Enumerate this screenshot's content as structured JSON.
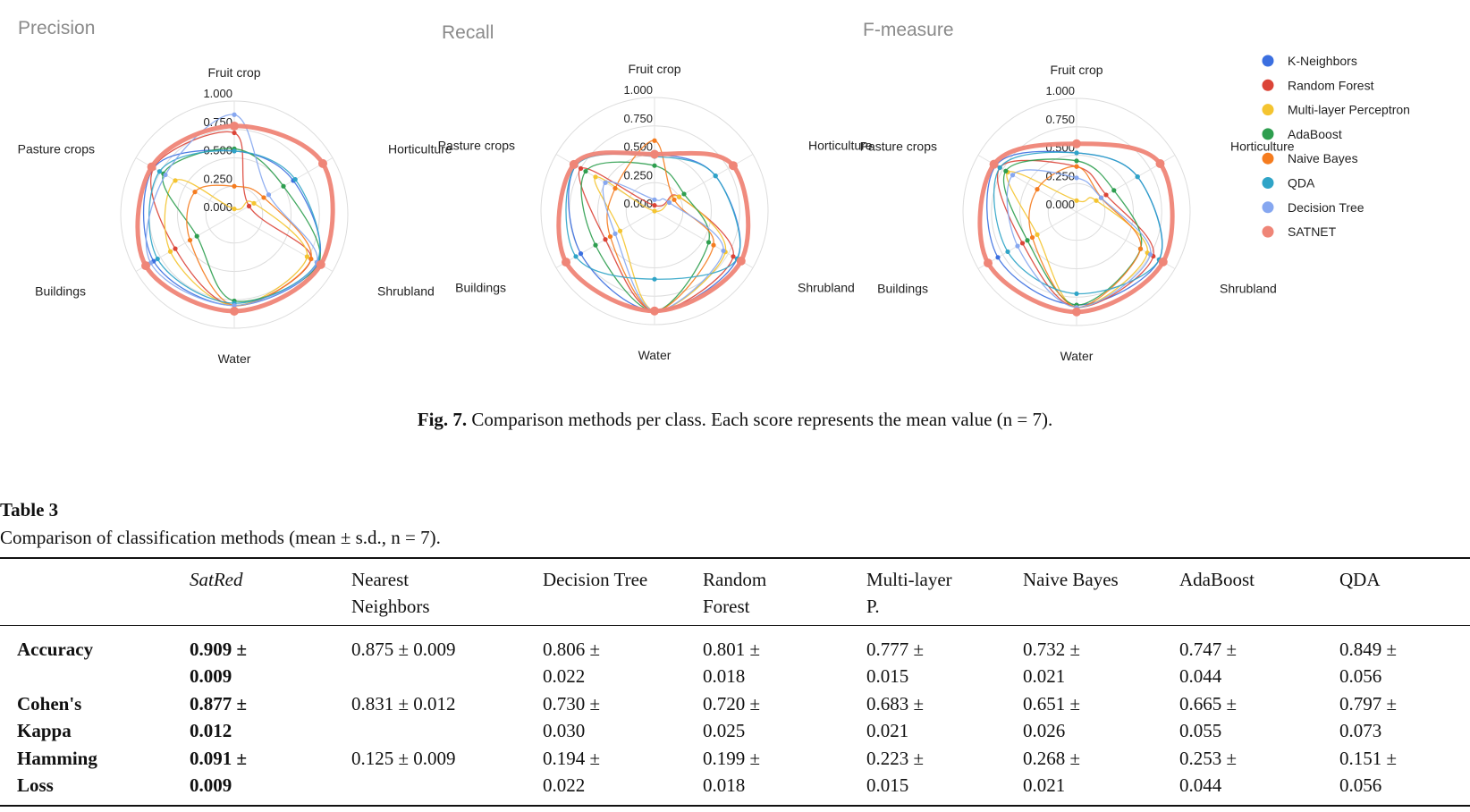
{
  "figure": {
    "classes": [
      "Fruit crop",
      "Horticulture",
      "Shrubland",
      "Water",
      "Buildings",
      "Pasture crops"
    ],
    "ticks": [
      "0.000",
      "0.250",
      "0.500",
      "0.750",
      "1.000"
    ],
    "legend": [
      {
        "name": "K-Neighbors",
        "color": "#3b6fe0"
      },
      {
        "name": "Random Forest",
        "color": "#db4437"
      },
      {
        "name": "Multi-layer Perceptron",
        "color": "#f4c430"
      },
      {
        "name": "AdaBoost",
        "color": "#2e9e4f"
      },
      {
        "name": "Naive Bayes",
        "color": "#f57c1f"
      },
      {
        "name": "QDA",
        "color": "#2fa4c7"
      },
      {
        "name": "Decision Tree",
        "color": "#86a7f0"
      },
      {
        "name": "SATNET",
        "color": "#ef8577"
      }
    ],
    "caption_label": "Fig. 7.",
    "caption_text": " Comparison methods per class. Each score represents the mean value (n = 7)."
  },
  "chart_data": [
    {
      "type": "radar",
      "title": "Precision",
      "axes": [
        "Fruit crop",
        "Horticulture",
        "Shrubland",
        "Water",
        "Buildings",
        "Pasture crops"
      ],
      "ylim": [
        0,
        1
      ],
      "series": [
        {
          "name": "K-Neighbors",
          "values": [
            0.56,
            0.6,
            0.85,
            0.8,
            0.82,
            0.82
          ]
        },
        {
          "name": "Random Forest",
          "values": [
            0.72,
            0.15,
            0.78,
            0.8,
            0.6,
            0.82
          ]
        },
        {
          "name": "Multi-layer Perceptron",
          "values": [
            0.05,
            0.2,
            0.74,
            0.8,
            0.65,
            0.6
          ]
        },
        {
          "name": "AdaBoost",
          "values": [
            0.58,
            0.5,
            0.86,
            0.76,
            0.38,
            0.72
          ]
        },
        {
          "name": "Naive Bayes",
          "values": [
            0.25,
            0.3,
            0.78,
            0.8,
            0.45,
            0.4
          ]
        },
        {
          "name": "QDA",
          "values": [
            0.56,
            0.62,
            0.84,
            0.78,
            0.78,
            0.76
          ]
        },
        {
          "name": "Decision Tree",
          "values": [
            0.88,
            0.35,
            0.84,
            0.8,
            0.85,
            0.7
          ]
        },
        {
          "name": "SATNET",
          "values": [
            0.78,
            0.9,
            0.88,
            0.85,
            0.9,
            0.84
          ]
        }
      ]
    },
    {
      "type": "radar",
      "title": "Recall",
      "axes": [
        "Fruit crop",
        "Horticulture",
        "Shrubland",
        "Water",
        "Buildings",
        "Pasture crops"
      ],
      "ylim": [
        0,
        1
      ],
      "series": [
        {
          "name": "K-Neighbors",
          "values": [
            0.5,
            0.62,
            0.84,
            0.88,
            0.75,
            0.8
          ]
        },
        {
          "name": "Random Forest",
          "values": [
            0.05,
            0.25,
            0.8,
            0.88,
            0.5,
            0.75
          ]
        },
        {
          "name": "Multi-layer Perceptron",
          "values": [
            0.0,
            0.25,
            0.72,
            0.88,
            0.35,
            0.6
          ]
        },
        {
          "name": "AdaBoost",
          "values": [
            0.4,
            0.3,
            0.55,
            0.88,
            0.6,
            0.7
          ]
        },
        {
          "name": "Naive Bayes",
          "values": [
            0.62,
            0.2,
            0.6,
            0.88,
            0.45,
            0.4
          ]
        },
        {
          "name": "QDA",
          "values": [
            0.48,
            0.62,
            0.84,
            0.6,
            0.8,
            0.8
          ]
        },
        {
          "name": "Decision Tree",
          "values": [
            0.1,
            0.15,
            0.7,
            0.88,
            0.4,
            0.5
          ]
        },
        {
          "name": "SATNET",
          "values": [
            0.5,
            0.8,
            0.88,
            0.88,
            0.9,
            0.82
          ]
        }
      ]
    },
    {
      "type": "radar",
      "title": "F-measure",
      "axes": [
        "Fruit crop",
        "Horticulture",
        "Shrubland",
        "Water",
        "Buildings",
        "Pasture crops"
      ],
      "ylim": [
        0,
        1
      ],
      "series": [
        {
          "name": "K-Neighbors",
          "values": [
            0.52,
            0.62,
            0.84,
            0.82,
            0.8,
            0.82
          ]
        },
        {
          "name": "Random Forest",
          "values": [
            0.4,
            0.3,
            0.78,
            0.84,
            0.55,
            0.78
          ]
        },
        {
          "name": "Multi-layer Perceptron",
          "values": [
            0.1,
            0.2,
            0.72,
            0.84,
            0.4,
            0.7
          ]
        },
        {
          "name": "AdaBoost",
          "values": [
            0.45,
            0.38,
            0.65,
            0.82,
            0.5,
            0.72
          ]
        },
        {
          "name": "Naive Bayes",
          "values": [
            0.4,
            0.25,
            0.65,
            0.84,
            0.45,
            0.4
          ]
        },
        {
          "name": "QDA",
          "values": [
            0.52,
            0.62,
            0.84,
            0.72,
            0.7,
            0.78
          ]
        },
        {
          "name": "Decision Tree",
          "values": [
            0.3,
            0.25,
            0.75,
            0.84,
            0.6,
            0.65
          ]
        },
        {
          "name": "SATNET",
          "values": [
            0.6,
            0.85,
            0.88,
            0.88,
            0.9,
            0.84
          ]
        }
      ]
    }
  ],
  "table": {
    "label": "Table 3",
    "caption": "Comparison of classification methods (mean ± s.d., n = 7).",
    "columns": [
      "SatRed",
      "Nearest\nNeighbors",
      "Decision Tree",
      "Random\nForest",
      "Multi-layer\nP.",
      "Naive Bayes",
      "AdaBoost",
      "QDA"
    ],
    "rows": [
      {
        "label": "Accuracy",
        "values": [
          "0.909 ±\n0.009",
          "0.875 ± 0.009",
          "0.806 ±\n0.022",
          "0.801 ±\n0.018",
          "0.777 ±\n0.015",
          "0.732 ±\n0.021",
          "0.747 ±\n0.044",
          "0.849 ±\n0.056"
        ]
      },
      {
        "label": "Cohen's\n     Kappa",
        "values": [
          "0.877 ±\n0.012",
          "0.831 ± 0.012",
          "0.730 ±\n0.030",
          "0.720 ±\n0.025",
          "0.683 ±\n0.021",
          "0.651 ±\n0.026",
          "0.665 ±\n0.055",
          "0.797 ±\n0.073"
        ]
      },
      {
        "label": "Hamming\n     Loss",
        "values": [
          "0.091 ±\n0.009",
          "0.125 ± 0.009",
          "0.194 ±\n0.022",
          "0.199 ±\n0.018",
          "0.223 ±\n0.015",
          "0.268 ±\n0.021",
          "0.253 ±\n0.044",
          "0.151 ±\n0.056"
        ]
      }
    ]
  }
}
